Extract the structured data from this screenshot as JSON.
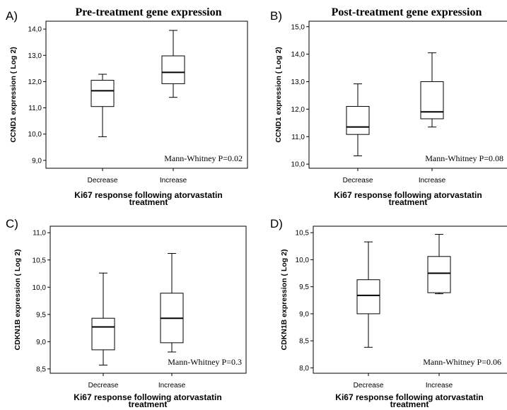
{
  "chart_data": [
    {
      "type": "box",
      "panel_label": "A)",
      "title": "Pre-treatment gene expression",
      "ylabel": "CCND1 expression ( Log 2)",
      "xlabel": "Ki67 response following atorvastatin treatment",
      "ylim": [
        8.7,
        14.3
      ],
      "yticks": [
        "9,0",
        "10,0",
        "11,0",
        "12,0",
        "13,0",
        "14,0"
      ],
      "ytick_values": [
        9,
        10,
        11,
        12,
        13,
        14
      ],
      "categories": [
        "Decrease",
        "Increase"
      ],
      "boxes": [
        {
          "min": 9.9,
          "q1": 11.05,
          "median": 11.65,
          "q3": 12.05,
          "max": 12.28
        },
        {
          "min": 11.4,
          "q1": 11.92,
          "median": 12.35,
          "q3": 12.98,
          "max": 13.95
        }
      ],
      "annotation": "Mann-Whitney P=0.02",
      "grid": false
    },
    {
      "type": "box",
      "panel_label": "B)",
      "title": "Post-treatment gene expression",
      "ylabel": "CCND1 expression ( Log 2)",
      "xlabel": "Ki67 response following atorvastatin treatment",
      "ylim": [
        9.85,
        15.2
      ],
      "yticks": [
        "10,0",
        "11,0",
        "12,0",
        "13,0",
        "14,0",
        "15,0"
      ],
      "ytick_values": [
        10,
        11,
        12,
        13,
        14,
        15
      ],
      "categories": [
        "Decrease",
        "Increase"
      ],
      "boxes": [
        {
          "min": 10.3,
          "q1": 11.08,
          "median": 11.35,
          "q3": 12.1,
          "max": 12.92
        },
        {
          "min": 11.35,
          "q1": 11.65,
          "median": 11.9,
          "q3": 13.0,
          "max": 14.05
        }
      ],
      "annotation": "Mann-Whitney P=0.08",
      "grid": false
    },
    {
      "type": "box",
      "panel_label": "C)",
      "title": "",
      "ylabel": "CDKN1B expression ( Log 2)",
      "xlabel": "Ki67 response following atorvastatin treatment",
      "ylim": [
        8.42,
        11.12
      ],
      "yticks": [
        "8,5",
        "9,0",
        "9,5",
        "10,0",
        "10,5",
        "11,0"
      ],
      "ytick_values": [
        8.5,
        9.0,
        9.5,
        10.0,
        10.5,
        11.0
      ],
      "categories": [
        "Decrease",
        "Increase"
      ],
      "boxes": [
        {
          "min": 8.57,
          "q1": 8.85,
          "median": 9.27,
          "q3": 9.43,
          "max": 10.26
        },
        {
          "min": 8.81,
          "q1": 8.98,
          "median": 9.43,
          "q3": 9.89,
          "max": 10.62
        }
      ],
      "annotation": "Mann-Whitney P=0.3",
      "grid": false
    },
    {
      "type": "box",
      "panel_label": "D)",
      "title": "",
      "ylabel": "CDKN1B expression ( Log 2)",
      "xlabel": "Ki67 response following atorvastatin treatment",
      "ylim": [
        7.9,
        10.62
      ],
      "yticks": [
        "8,0",
        "8,5",
        "9,0",
        "9,5",
        "10,0",
        "10,5"
      ],
      "ytick_values": [
        8.0,
        8.5,
        9.0,
        9.5,
        10.0,
        10.5
      ],
      "categories": [
        "Decrease",
        "Increase"
      ],
      "boxes": [
        {
          "min": 8.38,
          "q1": 9.0,
          "median": 9.34,
          "q3": 9.63,
          "max": 10.33
        },
        {
          "min": 9.37,
          "q1": 9.39,
          "median": 9.75,
          "q3": 10.06,
          "max": 10.47
        }
      ],
      "annotation": "Mann-Whitney P=0.06",
      "grid": false
    }
  ]
}
